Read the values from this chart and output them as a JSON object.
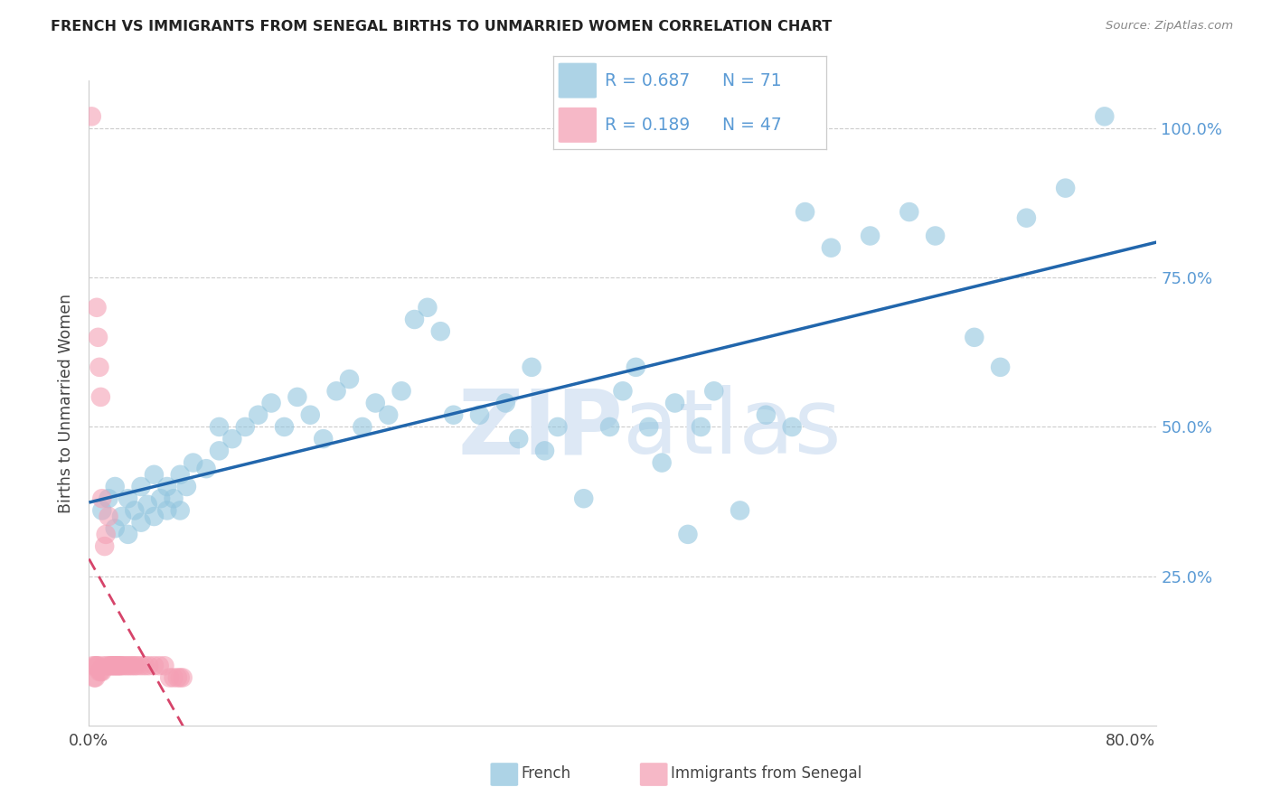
{
  "title": "FRENCH VS IMMIGRANTS FROM SENEGAL BIRTHS TO UNMARRIED WOMEN CORRELATION CHART",
  "source": "Source: ZipAtlas.com",
  "ylabel_left": "Births to Unmarried Women",
  "watermark_line1": "ZIP",
  "watermark_line2": "atlas",
  "x_min": 0.0,
  "x_max": 0.82,
  "y_min": 0.0,
  "y_max": 1.08,
  "yticks": [
    0.25,
    0.5,
    0.75,
    1.0
  ],
  "ytick_labels_right": [
    "25.0%",
    "50.0%",
    "75.0%",
    "100.0%"
  ],
  "xtick_positions": [
    0.0,
    0.1,
    0.2,
    0.3,
    0.4,
    0.5,
    0.6,
    0.7,
    0.8
  ],
  "xtick_labels": [
    "0.0%",
    "",
    "",
    "",
    "",
    "",
    "",
    "",
    "80.0%"
  ],
  "french_R": 0.687,
  "french_N": 71,
  "senegal_R": 0.189,
  "senegal_N": 47,
  "french_color": "#92c5de",
  "senegal_color": "#f4a0b5",
  "french_line_color": "#2166ac",
  "senegal_line_color": "#d6446a",
  "right_tick_color": "#5b9bd5",
  "legend_label_french": "French",
  "legend_label_senegal": "Immigrants from Senegal",
  "title_color": "#222222",
  "source_color": "#888888",
  "axis_label_color": "#444444",
  "grid_color": "#cccccc",
  "watermark_color": "#dde8f5",
  "french_x": [
    0.01,
    0.015,
    0.02,
    0.02,
    0.025,
    0.03,
    0.03,
    0.035,
    0.04,
    0.04,
    0.045,
    0.05,
    0.05,
    0.055,
    0.06,
    0.06,
    0.065,
    0.07,
    0.07,
    0.075,
    0.08,
    0.09,
    0.1,
    0.1,
    0.11,
    0.12,
    0.13,
    0.14,
    0.15,
    0.16,
    0.17,
    0.18,
    0.19,
    0.2,
    0.21,
    0.22,
    0.23,
    0.24,
    0.25,
    0.26,
    0.27,
    0.28,
    0.3,
    0.32,
    0.33,
    0.34,
    0.35,
    0.36,
    0.38,
    0.4,
    0.41,
    0.42,
    0.43,
    0.44,
    0.45,
    0.46,
    0.47,
    0.48,
    0.5,
    0.52,
    0.54,
    0.55,
    0.57,
    0.6,
    0.63,
    0.65,
    0.68,
    0.7,
    0.72,
    0.75,
    0.78
  ],
  "french_y": [
    0.36,
    0.38,
    0.33,
    0.4,
    0.35,
    0.32,
    0.38,
    0.36,
    0.34,
    0.4,
    0.37,
    0.35,
    0.42,
    0.38,
    0.36,
    0.4,
    0.38,
    0.36,
    0.42,
    0.4,
    0.44,
    0.43,
    0.46,
    0.5,
    0.48,
    0.5,
    0.52,
    0.54,
    0.5,
    0.55,
    0.52,
    0.48,
    0.56,
    0.58,
    0.5,
    0.54,
    0.52,
    0.56,
    0.68,
    0.7,
    0.66,
    0.52,
    0.52,
    0.54,
    0.48,
    0.6,
    0.46,
    0.5,
    0.38,
    0.5,
    0.56,
    0.6,
    0.5,
    0.44,
    0.54,
    0.32,
    0.5,
    0.56,
    0.36,
    0.52,
    0.5,
    0.86,
    0.8,
    0.82,
    0.86,
    0.82,
    0.65,
    0.6,
    0.85,
    0.9,
    1.02
  ],
  "senegal_x": [
    0.002,
    0.003,
    0.004,
    0.005,
    0.005,
    0.006,
    0.006,
    0.007,
    0.007,
    0.008,
    0.008,
    0.009,
    0.009,
    0.01,
    0.01,
    0.011,
    0.012,
    0.013,
    0.014,
    0.015,
    0.016,
    0.017,
    0.018,
    0.019,
    0.02,
    0.021,
    0.022,
    0.023,
    0.024,
    0.025,
    0.027,
    0.029,
    0.031,
    0.033,
    0.035,
    0.037,
    0.04,
    0.043,
    0.046,
    0.05,
    0.054,
    0.058,
    0.062,
    0.065,
    0.068,
    0.07,
    0.072
  ],
  "senegal_y": [
    1.02,
    0.1,
    0.08,
    0.1,
    0.08,
    0.1,
    0.7,
    0.1,
    0.65,
    0.09,
    0.6,
    0.09,
    0.55,
    0.09,
    0.38,
    0.1,
    0.3,
    0.32,
    0.1,
    0.35,
    0.1,
    0.1,
    0.1,
    0.1,
    0.1,
    0.1,
    0.1,
    0.1,
    0.1,
    0.1,
    0.1,
    0.1,
    0.1,
    0.1,
    0.1,
    0.1,
    0.1,
    0.1,
    0.1,
    0.1,
    0.1,
    0.1,
    0.08,
    0.08,
    0.08,
    0.08,
    0.08
  ]
}
